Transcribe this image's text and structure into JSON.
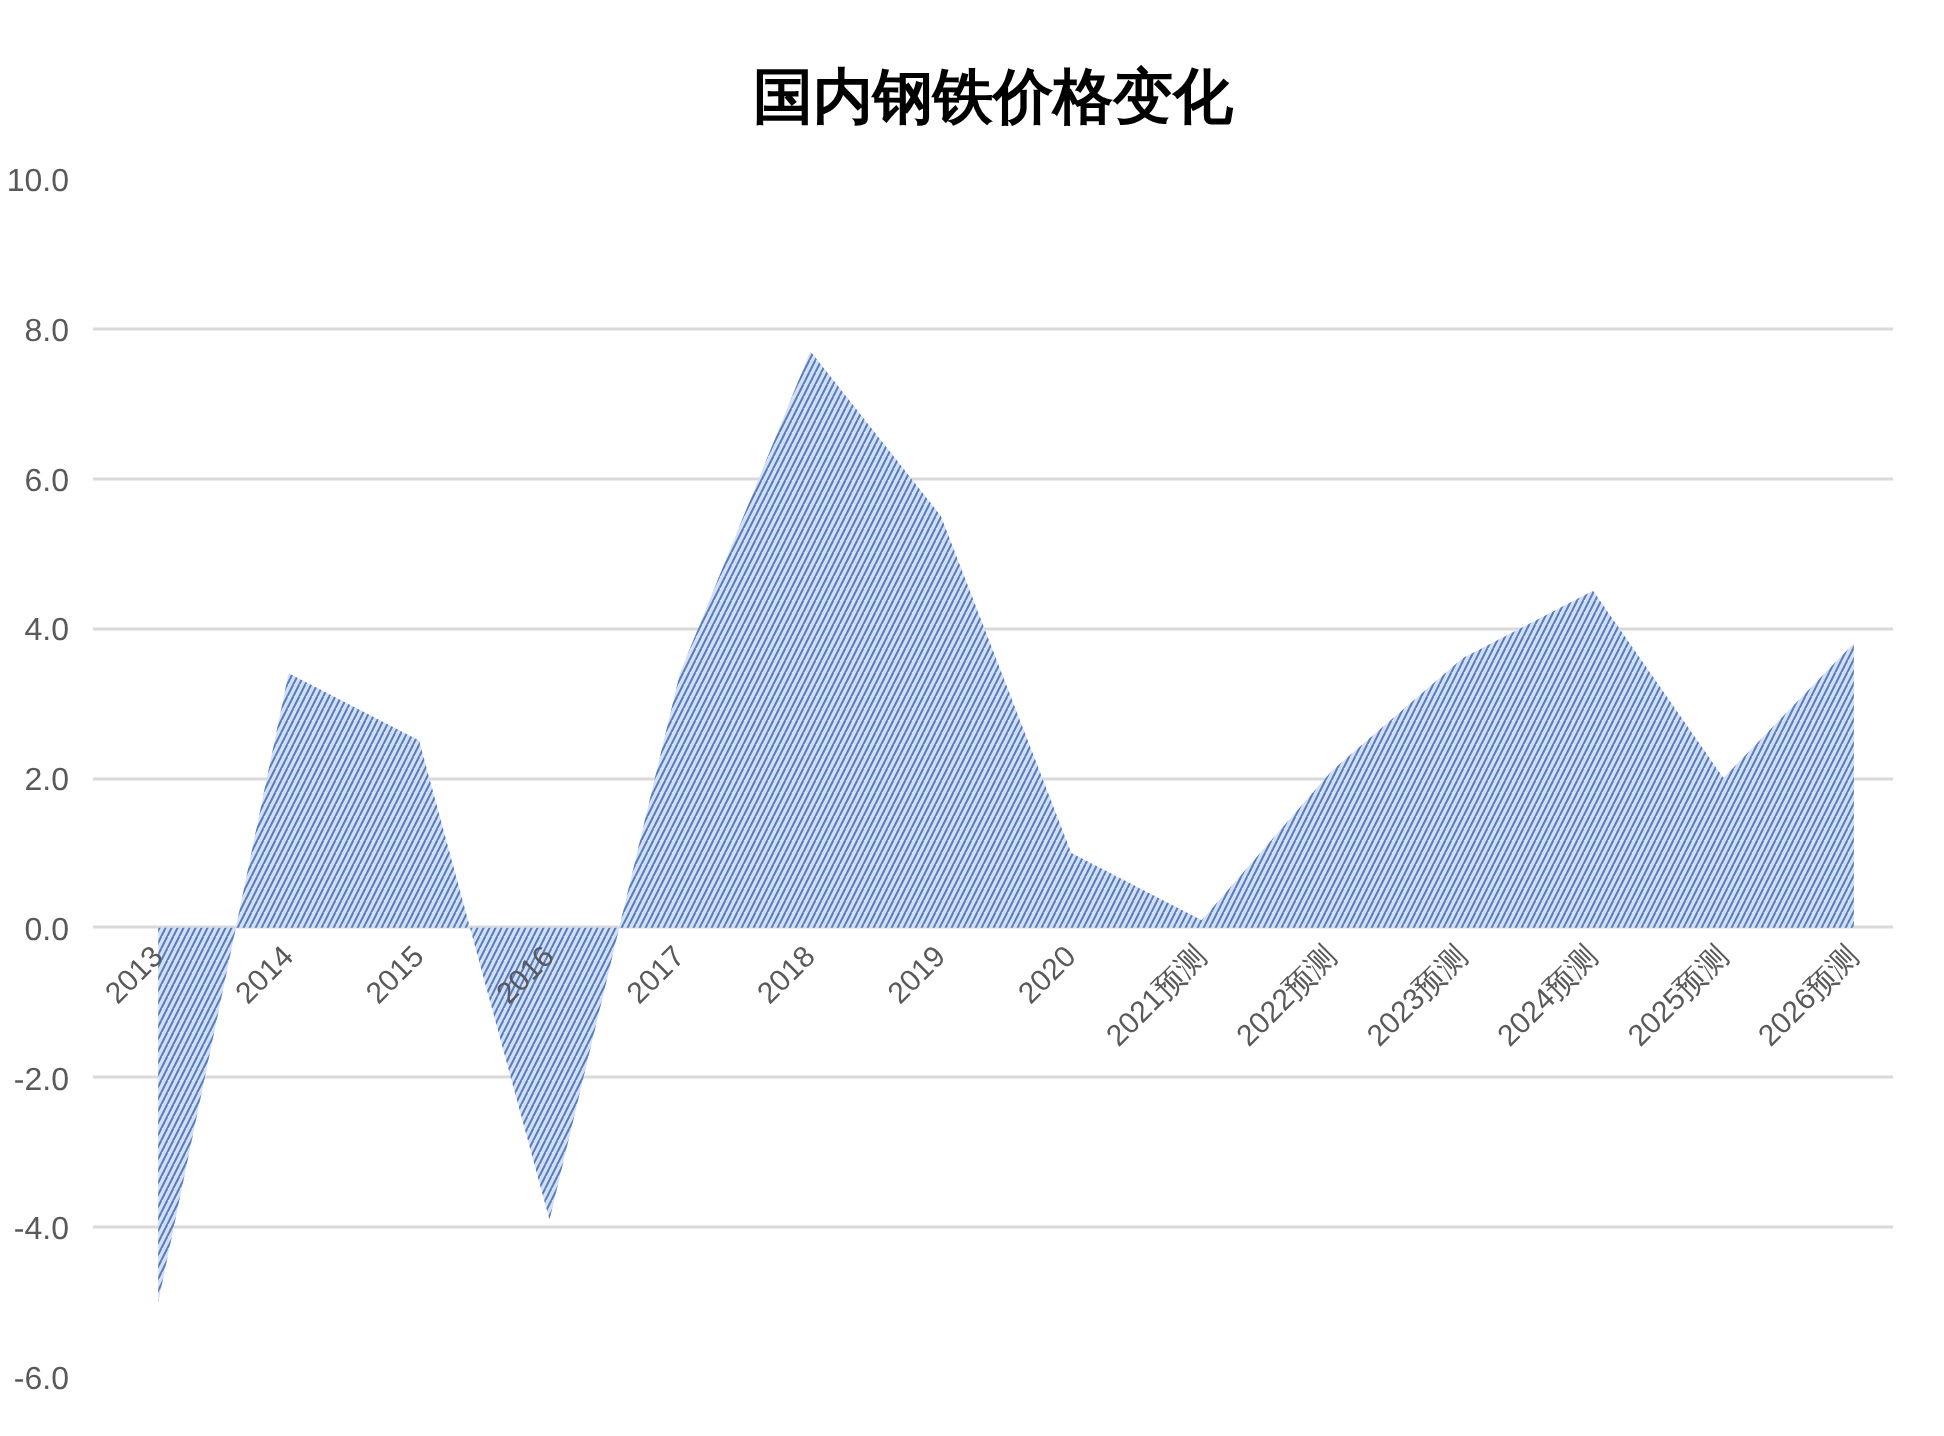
{
  "chart_data": {
    "type": "area",
    "title": "国内钢铁价格变化",
    "categories": [
      "2013",
      "2014",
      "2015",
      "2016",
      "2017",
      "2018",
      "2019",
      "2020",
      "2021预测",
      "2022预测",
      "2023预测",
      "2024预测",
      "2025预测",
      "2026预测"
    ],
    "values": [
      -5.0,
      3.4,
      2.5,
      -3.9,
      3.4,
      7.7,
      5.5,
      1.0,
      0.1,
      2.1,
      3.6,
      4.5,
      2.0,
      3.8
    ],
    "color": "#4472c4",
    "ylim": [
      -6,
      10
    ],
    "yticks": [
      {
        "value": -6,
        "label": "-6.0"
      },
      {
        "value": -4,
        "label": "-4.0"
      },
      {
        "value": -2,
        "label": "-2.0"
      },
      {
        "value": 0,
        "label": "0.0"
      },
      {
        "value": 2,
        "label": "2.0"
      },
      {
        "value": 4,
        "label": "4.0"
      },
      {
        "value": 6,
        "label": "6.0"
      },
      {
        "value": 8,
        "label": "8.0"
      },
      {
        "value": 10,
        "label": "10.0"
      }
    ],
    "grid": "y"
  }
}
